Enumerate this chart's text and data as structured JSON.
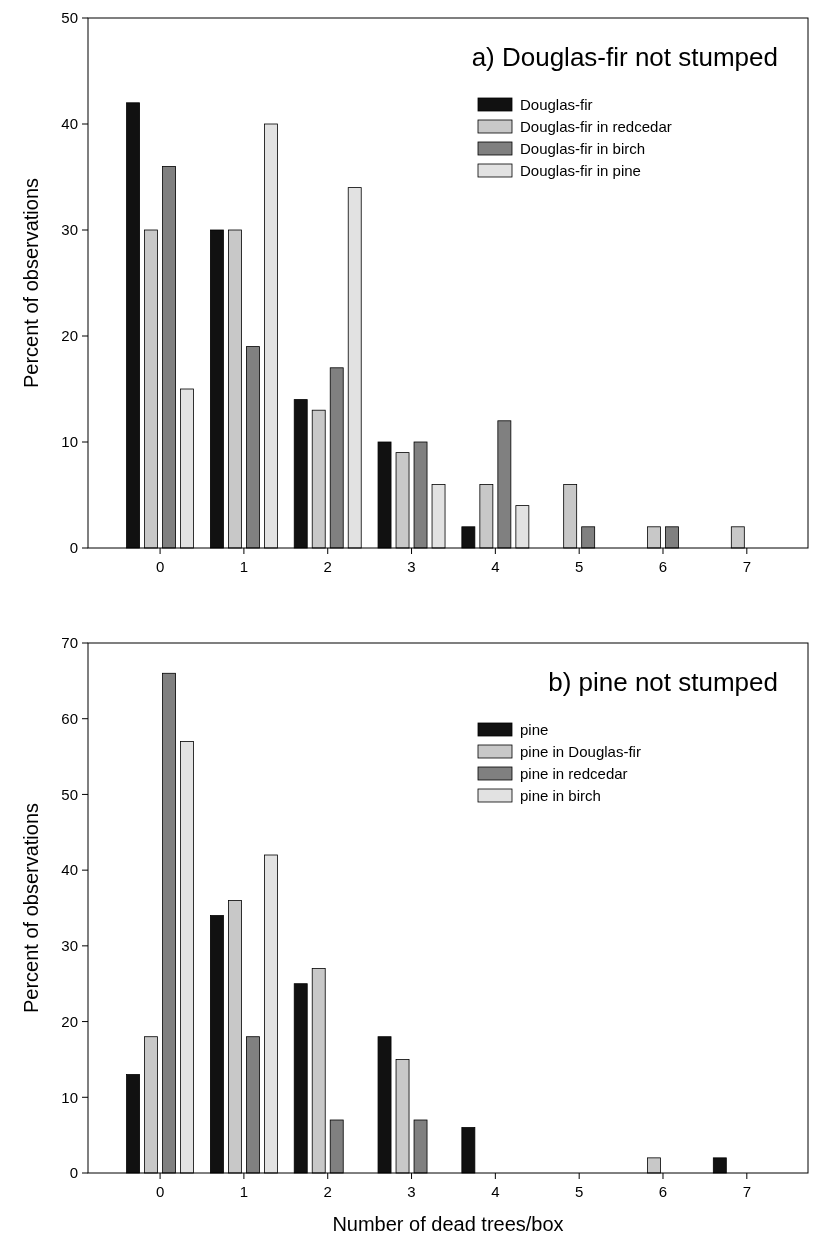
{
  "chart_data": [
    {
      "type": "bar",
      "title": "a) Douglas-fir not stumped",
      "ylabel": "Percent of observations",
      "categories": [
        "0",
        "1",
        "2",
        "3",
        "4",
        "5",
        "6",
        "7"
      ],
      "ylim": [
        0,
        50
      ],
      "yticks": [
        0,
        10,
        20,
        30,
        40,
        50
      ],
      "legend": "top right",
      "grid": false,
      "series": [
        {
          "name": "Douglas-fir",
          "color": "#111111",
          "values": [
            42,
            30,
            14,
            10,
            2,
            0,
            0,
            0
          ]
        },
        {
          "name": "Douglas-fir in redcedar",
          "color": "#c8c8c8",
          "values": [
            30,
            30,
            13,
            9,
            6,
            6,
            2,
            2
          ]
        },
        {
          "name": "Douglas-fir in birch",
          "color": "#808080",
          "values": [
            36,
            19,
            17,
            10,
            12,
            2,
            2,
            0
          ]
        },
        {
          "name": "Douglas-fir in pine",
          "color": "#e2e2e2",
          "values": [
            15,
            40,
            34,
            6,
            4,
            0,
            0,
            0
          ]
        }
      ]
    },
    {
      "type": "bar",
      "title": "b) pine not stumped",
      "xlabel": "Number of dead trees/box",
      "ylabel": "Percent of observations",
      "categories": [
        "0",
        "1",
        "2",
        "3",
        "4",
        "5",
        "6",
        "7"
      ],
      "ylim": [
        0,
        70
      ],
      "yticks": [
        0,
        10,
        20,
        30,
        40,
        50,
        60,
        70
      ],
      "legend": "top right",
      "grid": false,
      "series": [
        {
          "name": "pine",
          "color": "#111111",
          "values": [
            13,
            34,
            25,
            18,
            6,
            0,
            0,
            2
          ]
        },
        {
          "name": "pine in Douglas-fir",
          "color": "#c8c8c8",
          "values": [
            18,
            36,
            27,
            15,
            0,
            0,
            2,
            0
          ]
        },
        {
          "name": "pine in redcedar",
          "color": "#808080",
          "values": [
            66,
            18,
            7,
            7,
            0,
            0,
            0,
            0
          ]
        },
        {
          "name": "pine in birch",
          "color": "#e2e2e2",
          "values": [
            57,
            42,
            0,
            0,
            0,
            0,
            0,
            0
          ]
        }
      ]
    }
  ]
}
